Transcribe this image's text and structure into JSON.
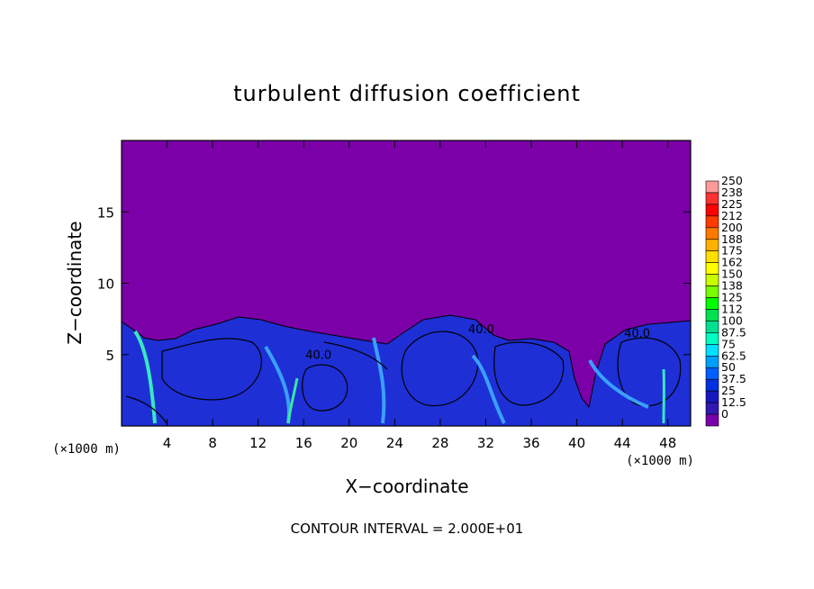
{
  "chart_data": {
    "type": "heatmap",
    "title": "turbulent diffusion coefficient",
    "xlabel": "X−coordinate",
    "ylabel": "Z−coordinate",
    "x_unit_left": "(×1000 m)",
    "x_unit_right": "(×1000 m)",
    "footer": "CONTOUR INTERVAL = 2.000E+01",
    "xlim": [
      0,
      50
    ],
    "ylim": [
      0,
      20
    ],
    "x_ticks": [
      4,
      8,
      12,
      16,
      20,
      24,
      28,
      32,
      36,
      40,
      44,
      48
    ],
    "x_tick_labels": [
      "4",
      "8",
      "12",
      "16",
      "20",
      "24",
      "28",
      "32",
      "36",
      "40",
      "44",
      "48"
    ],
    "y_ticks": [
      5,
      10,
      15
    ],
    "y_tick_labels": [
      "5",
      "10",
      "15"
    ],
    "contour_labels": [
      {
        "text": "40.0",
        "x": 17.3,
        "z": 4.7
      },
      {
        "text": "40.0",
        "x": 31.6,
        "z": 6.5
      },
      {
        "text": "40.0",
        "x": 45.3,
        "z": 6.2
      }
    ],
    "colorbar": {
      "labels": [
        "250",
        "238",
        "225",
        "212",
        "200",
        "188",
        "175",
        "162",
        "150",
        "138",
        "125",
        "112",
        "100",
        "87.5",
        "75",
        "62.5",
        "50",
        "37.5",
        "25",
        "12.5",
        "0"
      ],
      "colors": [
        "#ff9a9a",
        "#ff3030",
        "#ff0000",
        "#ff3a00",
        "#ff7800",
        "#ffb000",
        "#ffe000",
        "#ffff00",
        "#c8ff00",
        "#78ff00",
        "#00ff00",
        "#00e050",
        "#00e090",
        "#00ffc0",
        "#00e0ff",
        "#00a0ff",
        "#0060ff",
        "#0030e0",
        "#1818c0",
        "#3018b0",
        "#7a00aa"
      ]
    },
    "background_color": "#7b00a8"
  }
}
